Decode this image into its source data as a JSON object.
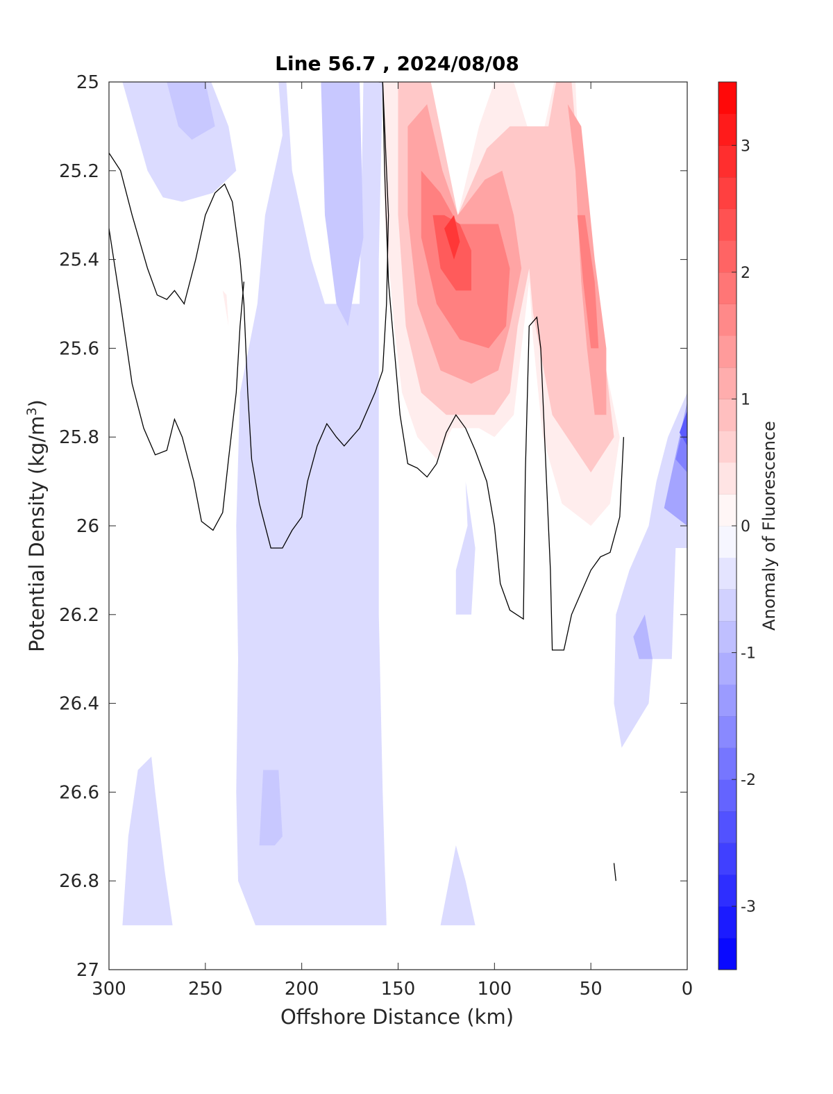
{
  "chart_data": {
    "type": "heatmap",
    "title": "Line 56.7 , 2024/08/08",
    "xlabel": "Offshore Distance (km)",
    "ylabel": "Potential Density (kg/m",
    "ylabel_sup": "3",
    "ylabel_close": ")",
    "xlim": [
      300,
      0
    ],
    "ylim": [
      25,
      27
    ],
    "x_reversed": true,
    "y_reversed": true,
    "xticks": [
      300,
      250,
      200,
      150,
      100,
      50,
      0
    ],
    "yticks": [
      25,
      25.2,
      25.4,
      25.6,
      25.8,
      26,
      26.2,
      26.4,
      26.6,
      26.8,
      27
    ],
    "ytick_labels": [
      "25",
      "25.2",
      "25.4",
      "25.6",
      "25.8",
      "26",
      "26.2",
      "26.4",
      "26.6",
      "26.8",
      "27"
    ],
    "grid": false,
    "colorbar": {
      "label": "Anomaly of Fluorescence",
      "range": [
        -3.5,
        3.5
      ],
      "step": 0.25,
      "ticks": [
        -3,
        -2,
        -1,
        0,
        1,
        2,
        3
      ],
      "tick_labels": [
        "-3",
        "-2",
        "-1",
        "0",
        "1",
        "2",
        "3"
      ],
      "colormap": "blue-white-red",
      "low_color": "#0000ff",
      "mid_color": "#ffffff",
      "high_color": "#ff0000"
    },
    "regions": [
      {
        "name": "neg-left-top",
        "level": -0.5,
        "points": [
          [
            293,
            25
          ],
          [
            247,
            25
          ],
          [
            238,
            25.1
          ],
          [
            234,
            25.2
          ],
          [
            246,
            25.25
          ],
          [
            262,
            25.27
          ],
          [
            272,
            25.26
          ],
          [
            280,
            25.2
          ]
        ]
      },
      {
        "name": "neg-left-top-core",
        "level": -0.75,
        "points": [
          [
            270,
            25
          ],
          [
            250,
            25
          ],
          [
            245,
            25.1
          ],
          [
            257,
            25.13
          ],
          [
            264,
            25.1
          ]
        ]
      },
      {
        "name": "neg-left-bottom",
        "level": -0.5,
        "points": [
          [
            293,
            26.9
          ],
          [
            267,
            26.9
          ],
          [
            271,
            26.78
          ],
          [
            276,
            26.6
          ],
          [
            278,
            26.52
          ],
          [
            285,
            26.55
          ],
          [
            290,
            26.7
          ]
        ]
      },
      {
        "name": "neg-main-column",
        "level": -0.5,
        "points": [
          [
            228,
            25
          ],
          [
            212,
            25
          ],
          [
            210,
            25.12
          ],
          [
            219,
            25.3
          ],
          [
            223,
            25.5
          ],
          [
            232,
            25.7
          ],
          [
            234,
            26
          ],
          [
            233,
            26.3
          ],
          [
            234,
            26.6
          ],
          [
            233,
            26.8
          ],
          [
            224,
            26.9
          ],
          [
            156,
            26.9
          ],
          [
            158,
            26.6
          ],
          [
            160,
            26.2
          ],
          [
            160,
            25.8
          ],
          [
            160,
            25.4
          ],
          [
            158,
            25
          ],
          [
            168,
            25
          ],
          [
            170,
            25.5
          ],
          [
            188,
            25.5
          ],
          [
            195,
            25.4
          ],
          [
            205,
            25.2
          ],
          [
            208,
            25
          ]
        ]
      },
      {
        "name": "neg-main-core-top",
        "level": -0.75,
        "points": [
          [
            190,
            25
          ],
          [
            170,
            25
          ],
          [
            168,
            25.35
          ],
          [
            176,
            25.55
          ],
          [
            182,
            25.5
          ],
          [
            188,
            25.3
          ]
        ]
      },
      {
        "name": "neg-main-core-bottom",
        "level": -0.75,
        "points": [
          [
            220,
            26.55
          ],
          [
            212,
            26.55
          ],
          [
            210,
            26.7
          ],
          [
            214,
            26.72
          ],
          [
            222,
            26.72
          ]
        ]
      },
      {
        "name": "neg-mid-strip",
        "level": -0.5,
        "points": [
          [
            120,
            26.1
          ],
          [
            114,
            26.0
          ],
          [
            115,
            25.9
          ],
          [
            110,
            26.05
          ],
          [
            112,
            26.2
          ],
          [
            120,
            26.2
          ]
        ]
      },
      {
        "name": "neg-bottom-small",
        "level": -0.5,
        "points": [
          [
            128,
            26.9
          ],
          [
            110,
            26.9
          ],
          [
            115,
            26.8
          ],
          [
            120,
            26.72
          ]
        ]
      },
      {
        "name": "neg-nearshore",
        "level": -0.5,
        "points": [
          [
            38,
            26.4
          ],
          [
            34,
            26.5
          ],
          [
            20,
            26.4
          ],
          [
            18,
            26.3
          ],
          [
            8,
            26.3
          ],
          [
            6,
            26.05
          ],
          [
            0,
            26.05
          ],
          [
            0,
            25.7
          ],
          [
            10,
            25.8
          ],
          [
            16,
            25.9
          ],
          [
            20,
            26.0
          ],
          [
            30,
            26.1
          ],
          [
            37,
            26.2
          ]
        ]
      },
      {
        "name": "neg-nearshore-core",
        "level": -1.0,
        "points": [
          [
            28,
            26.25
          ],
          [
            25,
            26.3
          ],
          [
            18,
            26.3
          ],
          [
            22,
            26.2
          ]
        ]
      },
      {
        "name": "neg-coast-1",
        "level": -1.25,
        "points": [
          [
            0,
            25.72
          ],
          [
            8,
            25.88
          ],
          [
            12,
            25.96
          ],
          [
            0,
            26.0
          ]
        ]
      },
      {
        "name": "neg-coast-2",
        "level": -1.75,
        "points": [
          [
            0,
            25.74
          ],
          [
            6,
            25.85
          ],
          [
            0,
            25.88
          ]
        ]
      },
      {
        "name": "neg-coast-3",
        "level": -2.25,
        "points": [
          [
            0,
            25.74
          ],
          [
            4,
            25.79
          ],
          [
            0,
            25.82
          ]
        ]
      },
      {
        "name": "pos-plume-west",
        "level": 0.25,
        "points": [
          [
            158,
            25
          ],
          [
            157,
            25.3
          ],
          [
            152,
            25.55
          ],
          [
            148,
            25.7
          ],
          [
            140,
            25.8
          ],
          [
            130,
            25.85
          ],
          [
            122,
            25.78
          ],
          [
            108,
            25.78
          ],
          [
            100,
            25.8
          ],
          [
            90,
            25.75
          ],
          [
            82,
            25.45
          ],
          [
            80,
            25.58
          ],
          [
            75,
            25.8
          ],
          [
            65,
            25.95
          ],
          [
            50,
            26
          ],
          [
            40,
            25.95
          ],
          [
            35,
            25.8
          ],
          [
            42,
            25.65
          ],
          [
            50,
            25.55
          ],
          [
            55,
            25.3
          ],
          [
            58,
            25
          ],
          [
            69,
            25
          ],
          [
            74,
            25.1
          ],
          [
            83,
            25.1
          ],
          [
            90,
            25
          ],
          [
            100,
            25
          ],
          [
            108,
            25.1
          ],
          [
            119,
            25.3
          ],
          [
            128,
            25.15
          ],
          [
            135,
            25
          ]
        ]
      },
      {
        "name": "pos-plume-mid",
        "level": 0.75,
        "points": [
          [
            150,
            25
          ],
          [
            150,
            25.3
          ],
          [
            146,
            25.55
          ],
          [
            138,
            25.7
          ],
          [
            125,
            25.75
          ],
          [
            112,
            25.75
          ],
          [
            100,
            25.75
          ],
          [
            92,
            25.7
          ],
          [
            88,
            25.55
          ],
          [
            82,
            25.42
          ],
          [
            80,
            25.52
          ],
          [
            70,
            25.75
          ],
          [
            50,
            25.88
          ],
          [
            38,
            25.8
          ],
          [
            42,
            25.65
          ],
          [
            48,
            25.5
          ],
          [
            56,
            25.2
          ],
          [
            60,
            25
          ],
          [
            68,
            25
          ],
          [
            72,
            25.1
          ],
          [
            82,
            25.1
          ],
          [
            92,
            25.1
          ],
          [
            104,
            25.15
          ],
          [
            119,
            25.3
          ],
          [
            126,
            25.15
          ],
          [
            133,
            25
          ]
        ]
      },
      {
        "name": "pos-plume-inner",
        "level": 1.25,
        "points": [
          [
            145,
            25.1
          ],
          [
            145,
            25.3
          ],
          [
            140,
            25.5
          ],
          [
            128,
            25.65
          ],
          [
            112,
            25.68
          ],
          [
            98,
            25.65
          ],
          [
            92,
            25.55
          ],
          [
            86,
            25.42
          ],
          [
            90,
            25.3
          ],
          [
            96,
            25.2
          ],
          [
            105,
            25.22
          ],
          [
            119,
            25.3
          ],
          [
            127,
            25.2
          ],
          [
            135,
            25.05
          ]
        ]
      },
      {
        "name": "pos-plume-east-inner",
        "level": 1.25,
        "points": [
          [
            62,
            25.05
          ],
          [
            58,
            25.2
          ],
          [
            55,
            25.45
          ],
          [
            52,
            25.6
          ],
          [
            48,
            25.75
          ],
          [
            42,
            25.75
          ],
          [
            42,
            25.6
          ],
          [
            48,
            25.4
          ],
          [
            55,
            25.1
          ]
        ]
      },
      {
        "name": "pos-plume-core",
        "level": 1.75,
        "points": [
          [
            138,
            25.2
          ],
          [
            138,
            25.35
          ],
          [
            130,
            25.5
          ],
          [
            118,
            25.58
          ],
          [
            103,
            25.6
          ],
          [
            94,
            25.55
          ],
          [
            92,
            25.42
          ],
          [
            98,
            25.32
          ],
          [
            110,
            25.32
          ],
          [
            119,
            25.32
          ],
          [
            128,
            25.25
          ]
        ]
      },
      {
        "name": "pos-plume-east-core",
        "level": 1.75,
        "points": [
          [
            57,
            25.3
          ],
          [
            54,
            25.45
          ],
          [
            50,
            25.6
          ],
          [
            46,
            25.6
          ],
          [
            48,
            25.45
          ],
          [
            53,
            25.3
          ]
        ]
      },
      {
        "name": "pos-plume-max",
        "level": 2.25,
        "points": [
          [
            132,
            25.3
          ],
          [
            128,
            25.42
          ],
          [
            120,
            25.47
          ],
          [
            112,
            25.47
          ],
          [
            112,
            25.38
          ],
          [
            118,
            25.32
          ],
          [
            126,
            25.3
          ]
        ]
      },
      {
        "name": "pos-plume-peak",
        "level": 2.75,
        "points": [
          [
            126,
            25.33
          ],
          [
            121,
            25.4
          ],
          [
            118,
            25.36
          ],
          [
            121,
            25.3
          ]
        ]
      },
      {
        "name": "pos-small-left",
        "level": 0.25,
        "points": [
          [
            241,
            25.47
          ],
          [
            238,
            25.55
          ],
          [
            239,
            25.48
          ]
        ]
      }
    ],
    "contours_zero": [
      [
        [
          300,
          25.16
        ],
        [
          294,
          25.2
        ],
        [
          288,
          25.3
        ],
        [
          280,
          25.42
        ],
        [
          275,
          25.48
        ],
        [
          270,
          25.49
        ],
        [
          266,
          25.47
        ],
        [
          261,
          25.5
        ],
        [
          255,
          25.4
        ],
        [
          250,
          25.3
        ],
        [
          245,
          25.25
        ],
        [
          240,
          25.23
        ],
        [
          236,
          25.27
        ],
        [
          232,
          25.4
        ],
        [
          230,
          25.5
        ],
        [
          228,
          25.7
        ],
        [
          226,
          25.85
        ],
        [
          222,
          25.95
        ],
        [
          216,
          26.05
        ],
        [
          210,
          26.05
        ],
        [
          205,
          26.01
        ],
        [
          200,
          25.98
        ],
        [
          197,
          25.9
        ],
        [
          192,
          25.82
        ],
        [
          187,
          25.77
        ],
        [
          182,
          25.8
        ],
        [
          178,
          25.82
        ],
        [
          170,
          25.78
        ],
        [
          162,
          25.7
        ],
        [
          158,
          25.65
        ],
        [
          156,
          25.5
        ],
        [
          155,
          25.3
        ],
        [
          158,
          25
        ],
        [
          160,
          25
        ],
        [
          158,
          25.0
        ]
      ],
      [
        [
          300,
          25.33
        ],
        [
          294,
          25.5
        ],
        [
          288,
          25.68
        ],
        [
          282,
          25.78
        ],
        [
          276,
          25.84
        ],
        [
          270,
          25.83
        ],
        [
          266,
          25.76
        ],
        [
          262,
          25.8
        ],
        [
          256,
          25.9
        ],
        [
          252,
          25.99
        ],
        [
          246,
          26.01
        ],
        [
          241,
          25.97
        ],
        [
          238,
          25.85
        ],
        [
          234,
          25.7
        ],
        [
          232,
          25.55
        ],
        [
          230,
          25.45
        ]
      ],
      [
        [
          158,
          25
        ],
        [
          157,
          25.2
        ],
        [
          155,
          25.45
        ],
        [
          152,
          25.6
        ],
        [
          149,
          25.75
        ],
        [
          145,
          25.86
        ],
        [
          140,
          25.87
        ],
        [
          135,
          25.89
        ],
        [
          130,
          25.86
        ],
        [
          125,
          25.79
        ],
        [
          120,
          25.75
        ],
        [
          115,
          25.78
        ],
        [
          110,
          25.83
        ],
        [
          104,
          25.9
        ],
        [
          100,
          26.0
        ],
        [
          97,
          26.13
        ],
        [
          92,
          26.19
        ],
        [
          85,
          26.21
        ],
        [
          84,
          25.88
        ],
        [
          82,
          25.55
        ],
        [
          78,
          25.53
        ],
        [
          76,
          25.6
        ],
        [
          73,
          25.9
        ],
        [
          71,
          26.1
        ],
        [
          70,
          26.28
        ],
        [
          64,
          26.28
        ],
        [
          60,
          26.2
        ],
        [
          55,
          26.15
        ],
        [
          50,
          26.1
        ],
        [
          45,
          26.07
        ],
        [
          40,
          26.06
        ],
        [
          35,
          25.98
        ],
        [
          33,
          25.8
        ]
      ],
      [
        [
          38,
          26.76
        ],
        [
          37,
          26.8
        ]
      ]
    ]
  }
}
